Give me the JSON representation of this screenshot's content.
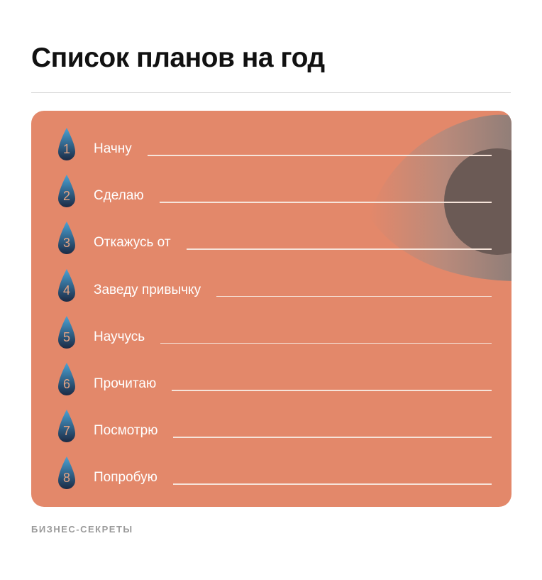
{
  "title": "Список планов на год",
  "card": {
    "background": "#e3886a",
    "items": [
      {
        "number": "1",
        "label": "Начну"
      },
      {
        "number": "2",
        "label": "Сделаю"
      },
      {
        "number": "3",
        "label": "Откажусь от"
      },
      {
        "number": "4",
        "label": "Заведу привычку"
      },
      {
        "number": "5",
        "label": "Научусь"
      },
      {
        "number": "6",
        "label": "Прочитаю"
      },
      {
        "number": "7",
        "label": "Посмотрю"
      },
      {
        "number": "8",
        "label": "Попробую"
      }
    ]
  },
  "icons": {
    "bullet": "water-drop-icon",
    "decoration": "eye-icon"
  },
  "colors": {
    "drop_top": "#4aa3d6",
    "drop_bottom": "#1c2a44",
    "eye_iris": "#6b5a55"
  },
  "footer": {
    "brand": "БИЗНЕС-СЕКРЕТЫ"
  }
}
